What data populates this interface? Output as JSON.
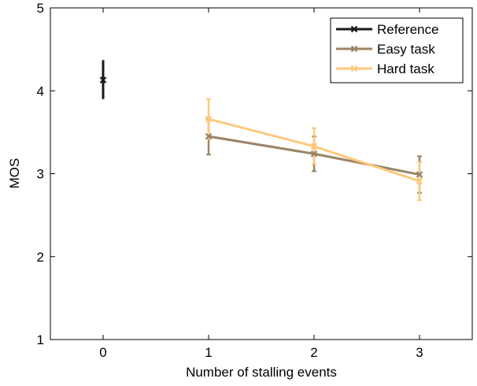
{
  "chart_data": {
    "type": "line",
    "xlabel": "Number of stalling events",
    "ylabel": "MOS",
    "xlim": [
      -0.5,
      3.5
    ],
    "ylim": [
      1,
      5
    ],
    "x_ticks": [
      0,
      1,
      2,
      3
    ],
    "y_ticks": [
      1,
      2,
      3,
      4,
      5
    ],
    "grid": false,
    "legend_position": "top-right",
    "series": [
      {
        "name": "Reference",
        "color": "#1a1a1a",
        "marker": "x",
        "x": [
          0
        ],
        "y": [
          4.13
        ],
        "err_low": [
          3.9
        ],
        "err_high": [
          4.37
        ]
      },
      {
        "name": "Easy task",
        "color": "#9b8466",
        "marker": "x",
        "x": [
          1,
          2,
          3
        ],
        "y": [
          3.45,
          3.24,
          2.99
        ],
        "err_low": [
          3.23,
          3.03,
          2.77
        ],
        "err_high": [
          3.66,
          3.45,
          3.21
        ]
      },
      {
        "name": "Hard task",
        "color": "#fdc97e",
        "marker": "x",
        "x": [
          1,
          2,
          3
        ],
        "y": [
          3.66,
          3.33,
          2.91
        ],
        "err_low": [
          3.42,
          3.12,
          2.68
        ],
        "err_high": [
          3.9,
          3.55,
          3.14
        ]
      }
    ]
  }
}
